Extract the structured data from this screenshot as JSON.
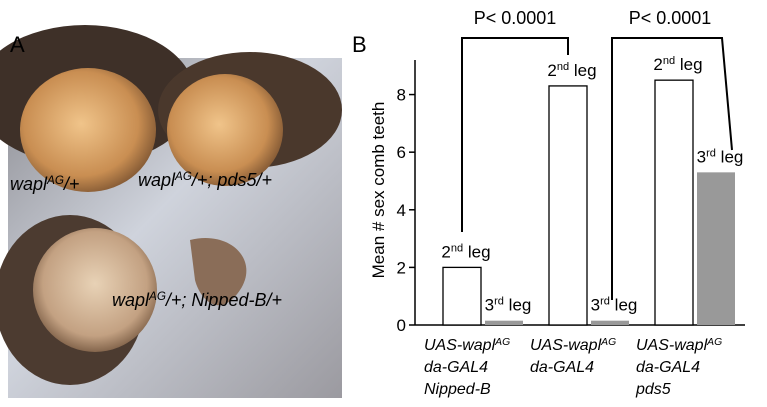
{
  "panel_a": {
    "letter": "A",
    "labels": [
      [
        "wapl",
        {
          "text": "AG",
          "sup": true
        },
        "/+"
      ],
      [
        "wapl",
        {
          "text": "AG",
          "sup": true
        },
        "/+; pds5/+"
      ],
      [
        "wapl",
        {
          "text": "AG",
          "sup": true
        },
        "/+; Nipped-B/+"
      ]
    ]
  },
  "chart_data": {
    "type": "bar",
    "letter": "B",
    "ylabel": "Mean # sex comb teeth",
    "categories": [
      [
        [
          "UAS-wapl",
          {
            "text": "AG",
            "sup": true
          }
        ],
        [
          "da-GAL4"
        ],
        [
          "Nipped-B"
        ]
      ],
      [
        [
          "UAS-wapl",
          {
            "text": "AG",
            "sup": true
          }
        ],
        [
          "da-GAL4"
        ]
      ],
      [
        [
          "UAS-wapl",
          {
            "text": "AG",
            "sup": true
          }
        ],
        [
          "da-GAL4"
        ],
        [
          "pds5"
        ]
      ]
    ],
    "series": [
      {
        "name": [
          "2",
          {
            "text": "nd",
            "sup": true
          },
          " leg"
        ],
        "color": "#ffffff",
        "values": [
          2.0,
          8.3,
          8.5
        ]
      },
      {
        "name": [
          "3",
          {
            "text": "rd",
            "sup": true
          },
          " leg"
        ],
        "color": "#999999",
        "values": [
          0.15,
          0.15,
          5.3
        ]
      }
    ],
    "ylim": [
      0,
      9.2
    ],
    "yticks": [
      0,
      2,
      4,
      6,
      8
    ],
    "annotations": [
      "P< 0.0001",
      "P< 0.0001"
    ]
  }
}
